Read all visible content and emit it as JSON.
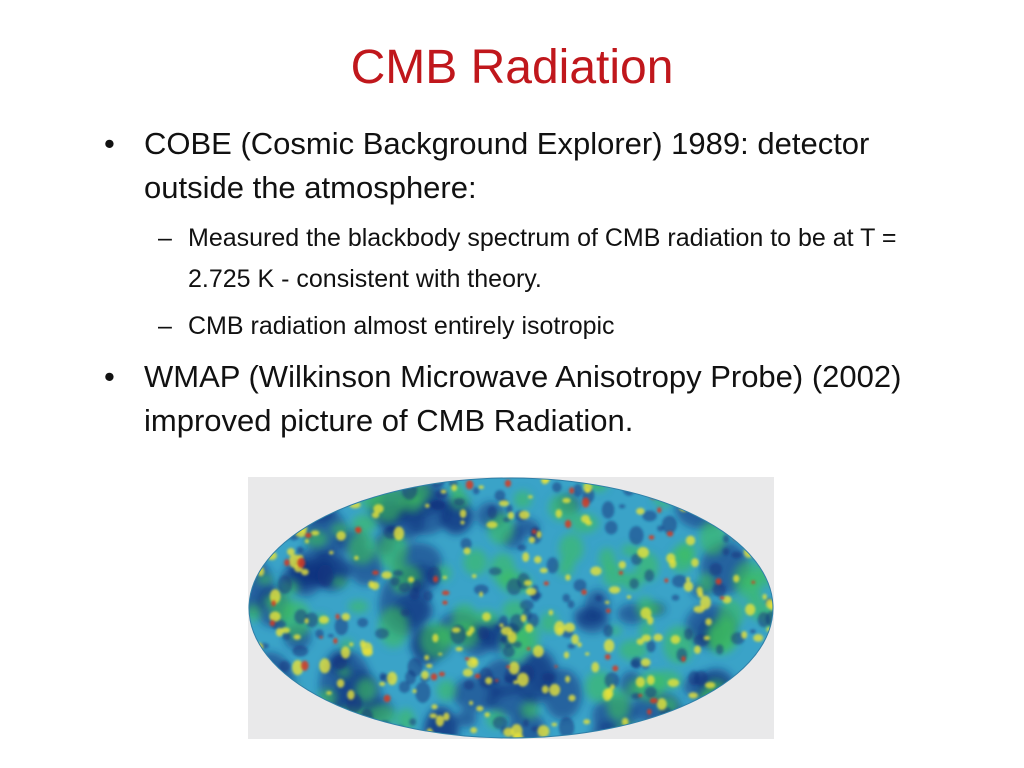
{
  "slide": {
    "title": "CMB Radiation",
    "bullets": [
      {
        "text": "COBE (Cosmic Background Explorer) 1989: detector outside the atmosphere:",
        "subitems": [
          "Measured the blackbody spectrum of CMB radiation to be at T = 2.725 K - consistent with theory.",
          "CMB radiation almost entirely isotropic"
        ]
      },
      {
        "text": "WMAP (Wilkinson Microwave Anisotropy Probe) (2002) improved picture of CMB Radiation."
      }
    ],
    "bullet_glyph": "•",
    "dash_glyph": "–"
  },
  "colors": {
    "title": "#c0171c",
    "text": "#111111",
    "map_base": "#3aa3c8",
    "map_cold": "#13317e",
    "map_warm": "#e8e23a",
    "map_hot": "#d8381e",
    "map_green": "#3cbf5a"
  }
}
